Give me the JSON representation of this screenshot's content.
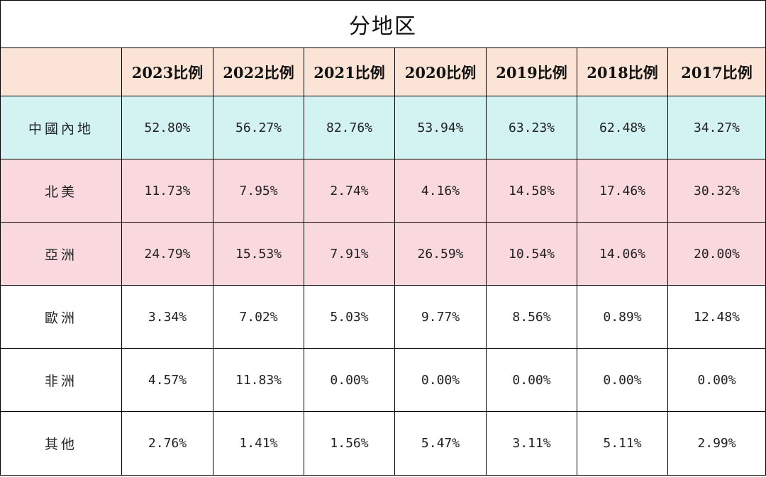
{
  "chart_data": {
    "type": "table",
    "title": "分地区",
    "columns": [
      "",
      "2023比例",
      "2022比例",
      "2021比例",
      "2020比例",
      "2019比例",
      "2018比例",
      "2017比例"
    ],
    "rows": [
      {
        "label": "中國內地",
        "bg": "#d2f3f1",
        "values": [
          "52.80%",
          "56.27%",
          "82.76%",
          "53.94%",
          "63.23%",
          "62.48%",
          "34.27%"
        ]
      },
      {
        "label": "北美",
        "bg": "#fad9de",
        "values": [
          "11.73%",
          "7.95%",
          "2.74%",
          "4.16%",
          "14.58%",
          "17.46%",
          "30.32%"
        ]
      },
      {
        "label": "亞洲",
        "bg": "#fad9de",
        "values": [
          "24.79%",
          "15.53%",
          "7.91%",
          "26.59%",
          "10.54%",
          "14.06%",
          "20.00%"
        ]
      },
      {
        "label": "歐洲",
        "bg": "#ffffff",
        "values": [
          "3.34%",
          "7.02%",
          "5.03%",
          "9.77%",
          "8.56%",
          "0.89%",
          "12.48%"
        ]
      },
      {
        "label": "非洲",
        "bg": "#ffffff",
        "values": [
          "4.57%",
          "11.83%",
          "0.00%",
          "0.00%",
          "0.00%",
          "0.00%",
          "0.00%"
        ]
      },
      {
        "label": "其他",
        "bg": "#ffffff",
        "values": [
          "2.76%",
          "1.41%",
          "1.56%",
          "5.47%",
          "3.11%",
          "5.11%",
          "2.99%"
        ]
      }
    ],
    "header_bg": "#fbe4d5"
  }
}
